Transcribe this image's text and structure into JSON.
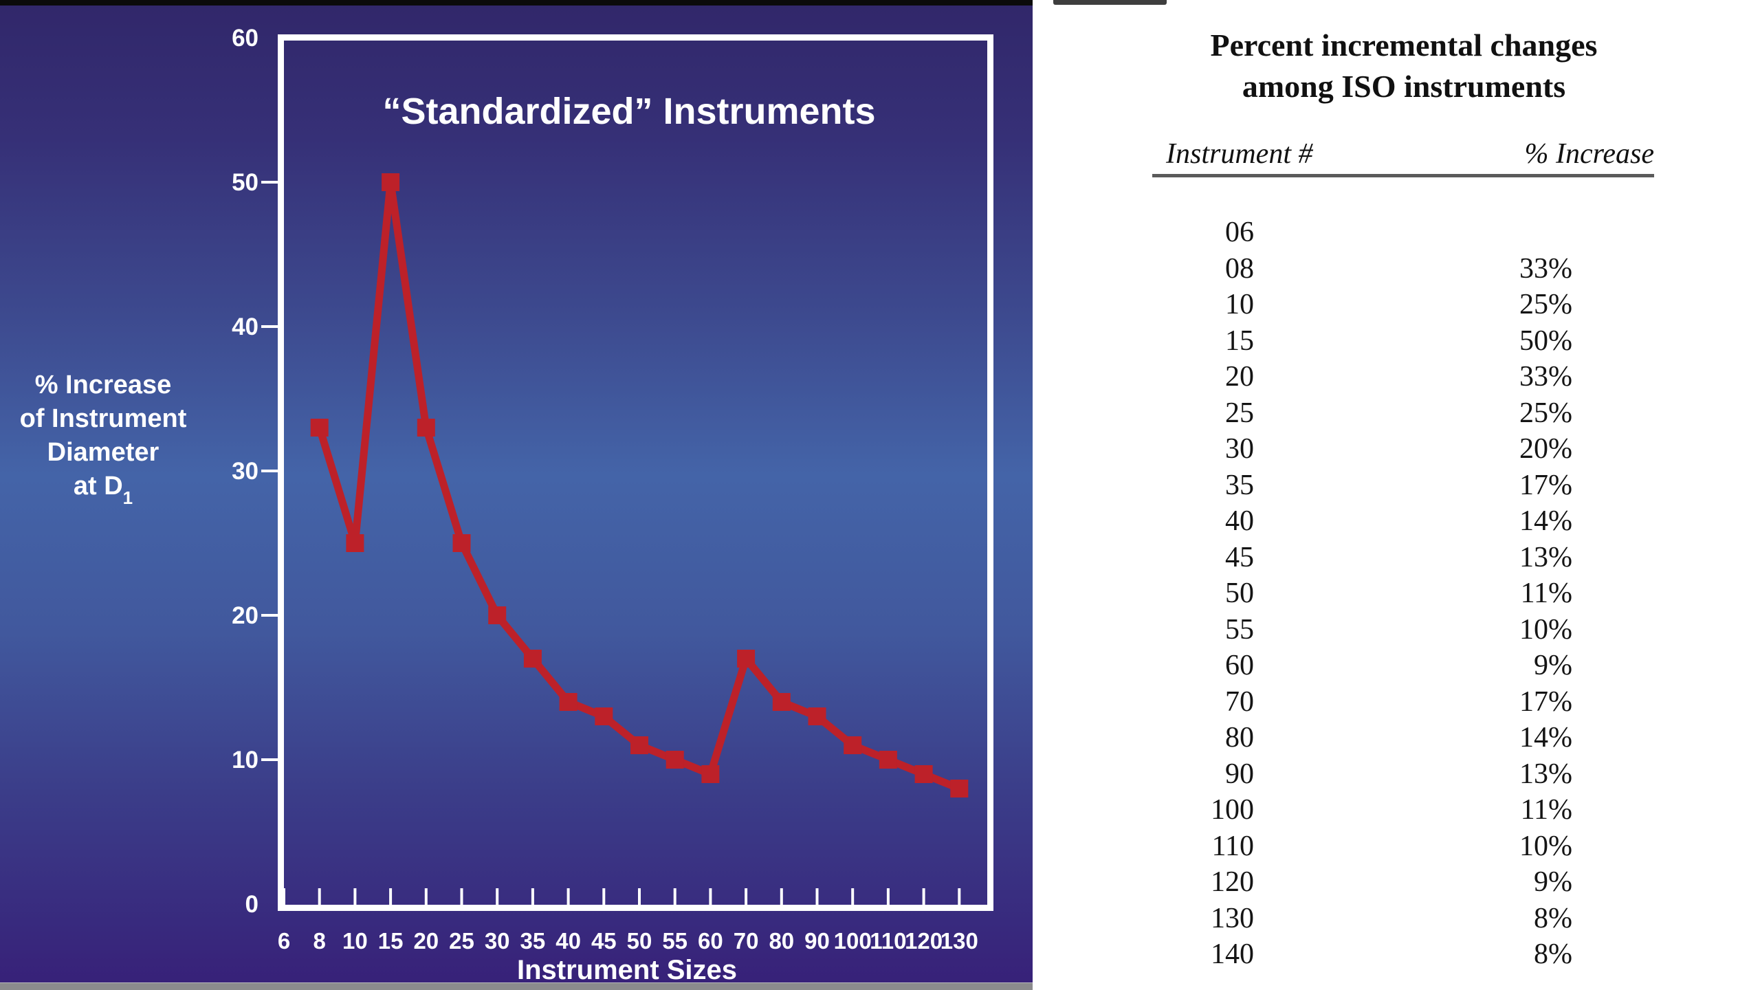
{
  "chart_data": {
    "type": "line",
    "title": "“Standardized” Instruments",
    "xlabel": "Instrument Sizes",
    "ylabel": "% Increase of Instrument Diameter at D1",
    "ylabel_lines": [
      "% Increase",
      "of Instrument",
      "Diameter",
      "at D"
    ],
    "ylabel_subscript": "1",
    "categories": [
      "6",
      "8",
      "10",
      "15",
      "20",
      "25",
      "30",
      "35",
      "40",
      "45",
      "50",
      "55",
      "60",
      "70",
      "80",
      "90",
      "100",
      "110",
      "120",
      "130"
    ],
    "y_ticks": [
      0,
      10,
      20,
      30,
      40,
      50,
      60
    ],
    "ylim": [
      0,
      60
    ],
    "grid": "off",
    "legend": "none",
    "series": [
      {
        "name": "% increase of instrument diameter at D1",
        "x": [
          "8",
          "10",
          "15",
          "20",
          "25",
          "30",
          "35",
          "40",
          "45",
          "50",
          "55",
          "60",
          "70",
          "80",
          "90",
          "100",
          "110",
          "120",
          "130"
        ],
        "values": [
          33,
          25,
          50,
          33,
          25,
          20,
          17,
          14,
          13,
          11,
          10,
          9,
          17,
          14,
          13,
          11,
          10,
          9,
          8
        ]
      }
    ],
    "line_color": "#bd2129",
    "marker": "square",
    "text_color": "#ffffff"
  },
  "table": {
    "title_lines": [
      "Percent incremental changes",
      "among ISO instruments"
    ],
    "columns": [
      "Instrument #",
      "% Increase"
    ],
    "rows": [
      {
        "instrument": "06",
        "increase": ""
      },
      {
        "instrument": "08",
        "increase": "33%"
      },
      {
        "instrument": "10",
        "increase": "25%"
      },
      {
        "instrument": "15",
        "increase": "50%"
      },
      {
        "instrument": "20",
        "increase": "33%"
      },
      {
        "instrument": "25",
        "increase": "25%"
      },
      {
        "instrument": "30",
        "increase": "20%"
      },
      {
        "instrument": "35",
        "increase": "17%"
      },
      {
        "instrument": "40",
        "increase": "14%"
      },
      {
        "instrument": "45",
        "increase": "13%"
      },
      {
        "instrument": "50",
        "increase": "11%"
      },
      {
        "instrument": "55",
        "increase": "10%"
      },
      {
        "instrument": "60",
        "increase": "9%"
      },
      {
        "instrument": "70",
        "increase": "17%"
      },
      {
        "instrument": "80",
        "increase": "14%"
      },
      {
        "instrument": "90",
        "increase": "13%"
      },
      {
        "instrument": "100",
        "increase": "11%"
      },
      {
        "instrument": "110",
        "increase": "10%"
      },
      {
        "instrument": "120",
        "increase": "9%"
      },
      {
        "instrument": "130",
        "increase": "8%"
      },
      {
        "instrument": "140",
        "increase": "8%"
      }
    ]
  },
  "colors": {
    "panel_gradient_top": "#31276a",
    "panel_gradient_mid": "#4464a8",
    "panel_gradient_bottom": "#372078",
    "axis_and_text": "#ffffff",
    "series_red": "#bd2129",
    "top_bar_black": "#0b0b0b",
    "bottom_bar_gray": "#8b8b8d"
  }
}
